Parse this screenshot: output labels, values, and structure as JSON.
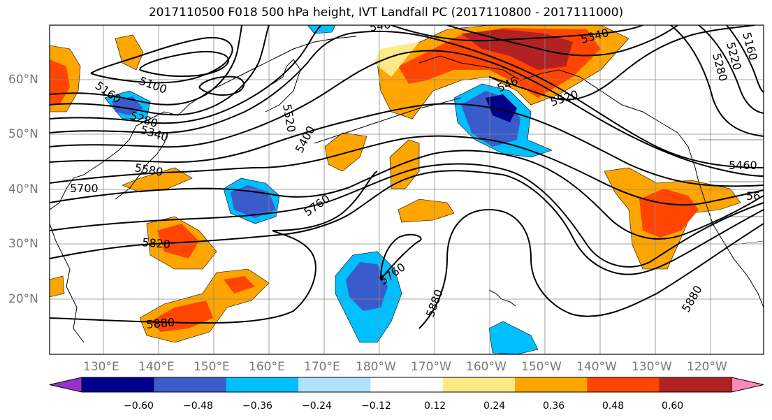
{
  "title": "2017110500 F018 500 hPa height, IVT Landfall PC (2017110800 - 2017111000)",
  "lat_labels": [
    "60°N",
    "50°N",
    "40°N",
    "30°N",
    "20°N"
  ],
  "lon_labels": [
    "130°E",
    "140°E",
    "150°E",
    "160°E",
    "170°E",
    "180°W",
    "170°W",
    "160°W",
    "150°W",
    "140°W",
    "130°W",
    "120°W"
  ],
  "contour_labels": {
    "l5160": "5160",
    "l5100": "5100",
    "l5280": "5280",
    "l5340w": "5340",
    "l5580": "5580",
    "l5700": "5700",
    "l5820": "5820",
    "l5880w": "5880",
    "l5400": "5400",
    "l5520c": "5520",
    "l5760": "5760",
    "l5760s": "5760",
    "l5880c": "5880",
    "l5460top": "5460",
    "l5340ne": "5340",
    "l5520ak": "5520",
    "l5880e": "5880",
    "l5460e": "5460",
    "l56e": "56",
    "l5160ne": "5160",
    "l5220ne": "5220",
    "l5280ne": "5280",
    "l5340c": "540",
    "l5520nw": "5520",
    "l5460n": "546"
  },
  "colorbar": {
    "ticks": [
      "−0.60",
      "−0.48",
      "−0.36",
      "−0.24",
      "−0.12",
      "0.12",
      "0.24",
      "0.36",
      "0.48",
      "0.60"
    ],
    "colors": [
      "#9932cc",
      "#00008b",
      "#3a5bcc",
      "#00bfff",
      "#b0e2ff",
      "#ffffff",
      "#ffe987",
      "#ffa500",
      "#ff4500",
      "#b22222",
      "#ff88b8"
    ]
  }
}
